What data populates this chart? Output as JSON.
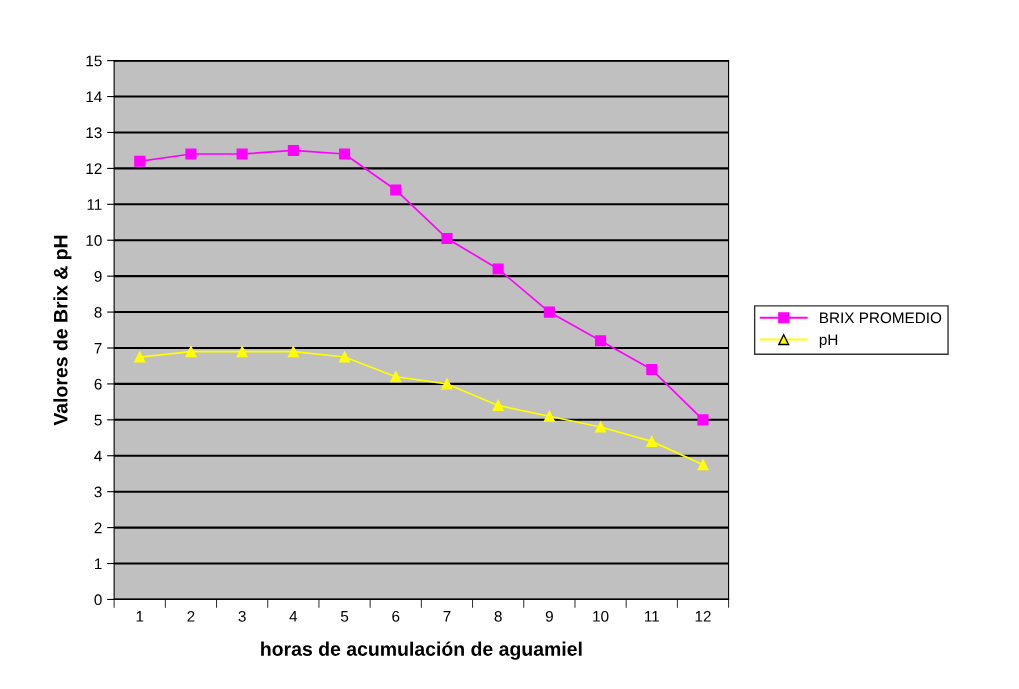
{
  "chart_data": {
    "type": "line",
    "xlabel": "horas de acumulación de aguamiel",
    "ylabel": "Valores de Brix & pH",
    "categories": [
      "1",
      "2",
      "3",
      "4",
      "5",
      "6",
      "7",
      "8",
      "9",
      "10",
      "11",
      "12"
    ],
    "series": [
      {
        "name": "BRIX PROMEDIO",
        "color": "#ff00ff",
        "marker": "square",
        "values": [
          12.2,
          12.4,
          12.4,
          12.5,
          12.4,
          11.4,
          10.05,
          9.2,
          8.0,
          7.2,
          6.4,
          5.0
        ]
      },
      {
        "name": "pH",
        "color": "#ffff00",
        "marker": "triangle",
        "values": [
          6.75,
          6.9,
          6.9,
          6.9,
          6.75,
          6.2,
          6.0,
          5.4,
          5.1,
          4.8,
          4.4,
          3.75
        ]
      }
    ],
    "ylim": [
      0,
      15
    ],
    "yticks": [
      0,
      1,
      2,
      3,
      4,
      5,
      6,
      7,
      8,
      9,
      10,
      11,
      12,
      13,
      14,
      15
    ],
    "grid": "y",
    "legend": "right"
  }
}
